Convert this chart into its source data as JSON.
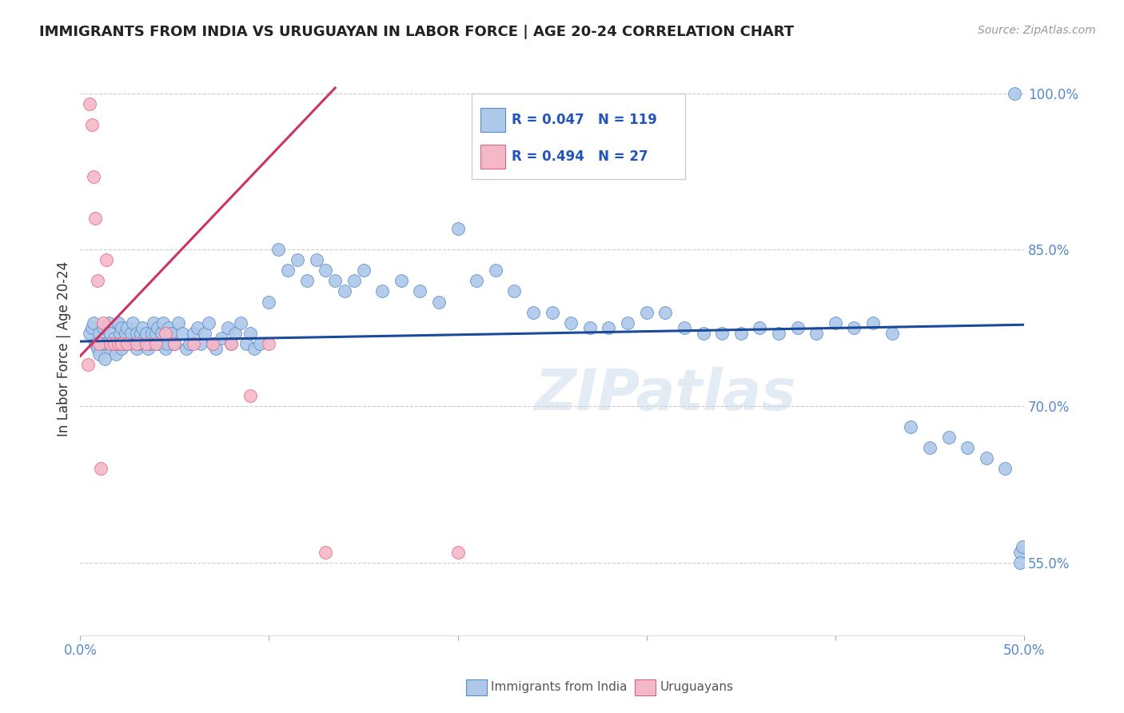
{
  "title": "IMMIGRANTS FROM INDIA VS URUGUAYAN IN LABOR FORCE | AGE 20-24 CORRELATION CHART",
  "source": "Source: ZipAtlas.com",
  "ylabel": "In Labor Force | Age 20-24",
  "xlim": [
    0.0,
    0.5
  ],
  "ylim": [
    0.48,
    1.03
  ],
  "xticks": [
    0.0,
    0.1,
    0.2,
    0.3,
    0.4,
    0.5
  ],
  "xtick_labels": [
    "0.0%",
    "",
    "",
    "",
    "",
    "50.0%"
  ],
  "ytick_vals": [
    0.55,
    0.7,
    0.85,
    1.0
  ],
  "ytick_labels": [
    "55.0%",
    "70.0%",
    "85.0%",
    "100.0%"
  ],
  "blue_color": "#adc8e8",
  "pink_color": "#f5b8c8",
  "blue_edge_color": "#5588cc",
  "pink_edge_color": "#e06080",
  "blue_line_color": "#1a4a99",
  "pink_line_color": "#cc3366",
  "legend_R_blue": "0.047",
  "legend_N_blue": "119",
  "legend_R_pink": "0.494",
  "legend_N_pink": "27",
  "legend_label_blue": "Immigrants from India",
  "legend_label_pink": "Uruguayans",
  "watermark": "ZIPatlas",
  "background_color": "#ffffff",
  "grid_color": "#cccccc",
  "blue_scatter_x": [
    0.005,
    0.006,
    0.007,
    0.008,
    0.009,
    0.01,
    0.01,
    0.011,
    0.012,
    0.013,
    0.014,
    0.015,
    0.016,
    0.017,
    0.018,
    0.019,
    0.02,
    0.02,
    0.021,
    0.022,
    0.022,
    0.023,
    0.024,
    0.025,
    0.026,
    0.027,
    0.028,
    0.029,
    0.03,
    0.03,
    0.031,
    0.032,
    0.033,
    0.034,
    0.035,
    0.036,
    0.037,
    0.038,
    0.039,
    0.04,
    0.04,
    0.041,
    0.042,
    0.043,
    0.044,
    0.045,
    0.046,
    0.047,
    0.048,
    0.05,
    0.052,
    0.054,
    0.056,
    0.058,
    0.06,
    0.062,
    0.064,
    0.066,
    0.068,
    0.07,
    0.072,
    0.075,
    0.078,
    0.08,
    0.082,
    0.085,
    0.088,
    0.09,
    0.092,
    0.095,
    0.1,
    0.105,
    0.11,
    0.115,
    0.12,
    0.125,
    0.13,
    0.135,
    0.14,
    0.145,
    0.15,
    0.16,
    0.17,
    0.18,
    0.19,
    0.2,
    0.21,
    0.22,
    0.23,
    0.24,
    0.25,
    0.26,
    0.27,
    0.28,
    0.29,
    0.3,
    0.31,
    0.32,
    0.33,
    0.34,
    0.35,
    0.36,
    0.37,
    0.38,
    0.39,
    0.4,
    0.41,
    0.42,
    0.43,
    0.44,
    0.45,
    0.46,
    0.47,
    0.48,
    0.49,
    0.495,
    0.498,
    0.498,
    0.499
  ],
  "blue_scatter_y": [
    0.77,
    0.775,
    0.78,
    0.76,
    0.755,
    0.77,
    0.75,
    0.76,
    0.775,
    0.745,
    0.76,
    0.78,
    0.77,
    0.755,
    0.765,
    0.75,
    0.78,
    0.76,
    0.77,
    0.775,
    0.755,
    0.76,
    0.77,
    0.775,
    0.76,
    0.77,
    0.78,
    0.76,
    0.77,
    0.755,
    0.76,
    0.77,
    0.775,
    0.765,
    0.77,
    0.755,
    0.76,
    0.77,
    0.78,
    0.76,
    0.77,
    0.775,
    0.76,
    0.77,
    0.78,
    0.755,
    0.76,
    0.775,
    0.77,
    0.76,
    0.78,
    0.77,
    0.755,
    0.76,
    0.77,
    0.775,
    0.76,
    0.77,
    0.78,
    0.76,
    0.755,
    0.765,
    0.775,
    0.76,
    0.77,
    0.78,
    0.76,
    0.77,
    0.755,
    0.76,
    0.8,
    0.85,
    0.83,
    0.84,
    0.82,
    0.84,
    0.83,
    0.82,
    0.81,
    0.82,
    0.83,
    0.81,
    0.82,
    0.81,
    0.8,
    0.87,
    0.82,
    0.83,
    0.81,
    0.79,
    0.79,
    0.78,
    0.775,
    0.775,
    0.78,
    0.79,
    0.79,
    0.775,
    0.77,
    0.77,
    0.77,
    0.775,
    0.77,
    0.775,
    0.77,
    0.78,
    0.775,
    0.78,
    0.77,
    0.68,
    0.66,
    0.67,
    0.66,
    0.65,
    0.64,
    1.0,
    0.56,
    0.55,
    0.565
  ],
  "pink_scatter_x": [
    0.004,
    0.005,
    0.006,
    0.007,
    0.008,
    0.009,
    0.01,
    0.011,
    0.012,
    0.014,
    0.016,
    0.018,
    0.02,
    0.022,
    0.025,
    0.03,
    0.035,
    0.04,
    0.045,
    0.05,
    0.06,
    0.07,
    0.08,
    0.09,
    0.1,
    0.13,
    0.2
  ],
  "pink_scatter_y": [
    0.74,
    0.99,
    0.97,
    0.92,
    0.88,
    0.82,
    0.76,
    0.64,
    0.78,
    0.84,
    0.76,
    0.76,
    0.76,
    0.76,
    0.76,
    0.76,
    0.76,
    0.76,
    0.77,
    0.76,
    0.76,
    0.76,
    0.76,
    0.71,
    0.76,
    0.56,
    0.56
  ],
  "blue_trend_x": [
    0.0,
    0.5
  ],
  "blue_trend_y": [
    0.762,
    0.778
  ],
  "pink_trend_x": [
    0.0,
    0.135
  ],
  "pink_trend_y": [
    0.748,
    1.005
  ]
}
